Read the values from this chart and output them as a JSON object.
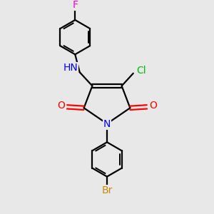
{
  "background_color": "#e8e8e8",
  "bond_color": "#000000",
  "atom_colors": {
    "N": "#0000ff",
    "O": "#ff0000",
    "Cl": "#00bb00",
    "Br": "#cc8800",
    "F": "#ff00cc",
    "H": "#000000",
    "C": "#000000"
  },
  "figsize": [
    3.0,
    3.0
  ],
  "dpi": 100
}
